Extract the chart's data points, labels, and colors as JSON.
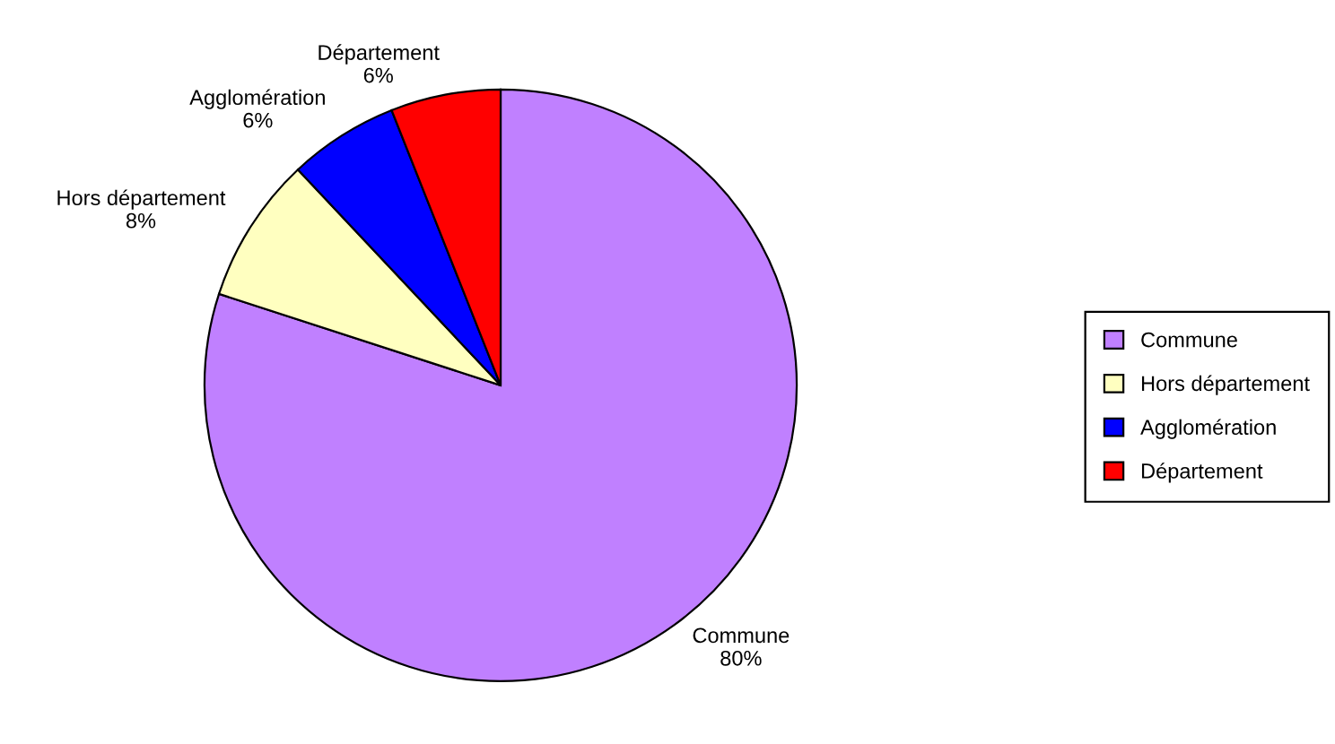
{
  "chart_data": {
    "type": "pie",
    "categories": [
      "Commune",
      "Hors département",
      "Agglomération",
      "Département"
    ],
    "values": [
      80,
      8,
      6,
      6
    ],
    "value_labels": [
      "80%",
      "8%",
      "6%",
      "6%"
    ],
    "colors": [
      "#c080ff",
      "#ffffc0",
      "#0000ff",
      "#ff0000"
    ],
    "legend": "right"
  }
}
